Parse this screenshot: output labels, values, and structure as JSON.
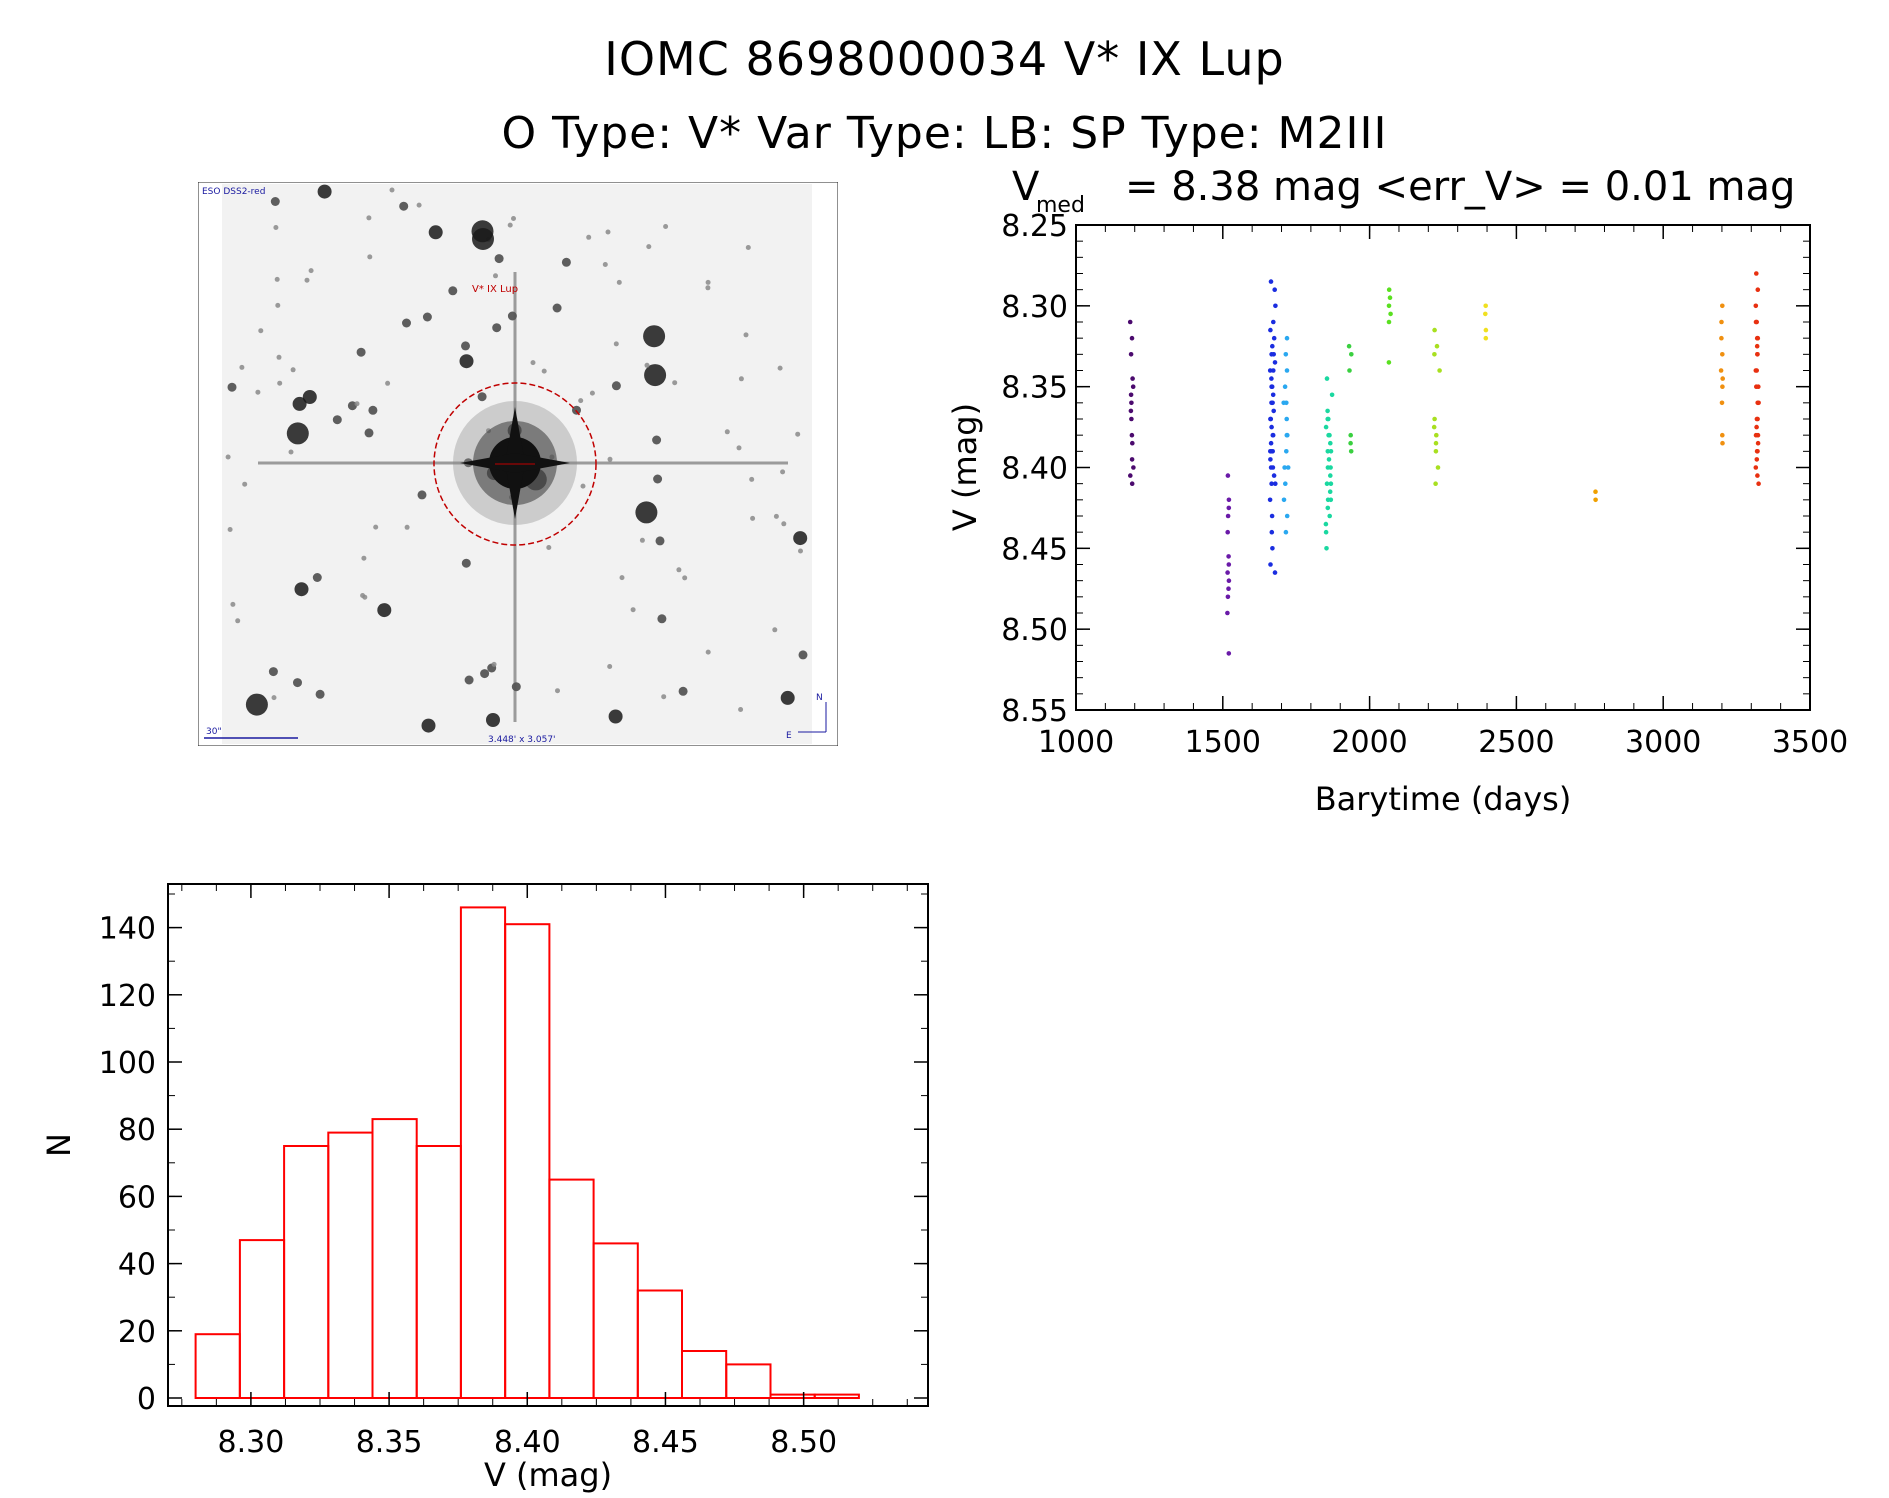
{
  "title": {
    "line1": "IOMC 8698000034    V* IX Lup",
    "line2": "O Type: V*  Var Type: LB:  SP Type: M2III"
  },
  "sky_image": {
    "survey_label": "ESO DSS2-red",
    "target_label": "V* IX Lup",
    "scale_label": "30\"",
    "fov_label": "3.448' x 3.057'",
    "north_label": "N",
    "east_label": "E"
  },
  "chart_data": [
    {
      "type": "scatter",
      "title_prefix": "V",
      "title_sub": "med",
      "title": "= 8.38 mag <err_V> = 0.01 mag",
      "xlabel": "Barytime (days)",
      "ylabel": "V (mag)",
      "xlim": [
        1000,
        3500
      ],
      "ylim": [
        8.55,
        8.25
      ],
      "y_inverted": true,
      "xticks": [
        "1000",
        "1500",
        "2000",
        "2500",
        "3000",
        "3500"
      ],
      "yticks": [
        "8.25",
        "8.30",
        "8.35",
        "8.40",
        "8.45",
        "8.50",
        "8.55"
      ],
      "groups": [
        {
          "color": "#4b0a6e",
          "x": 1190,
          "x_spread": 12,
          "y": [
            8.31,
            8.32,
            8.33,
            8.345,
            8.355,
            8.36,
            8.365,
            8.38,
            8.385,
            8.395,
            8.4,
            8.405,
            8.41,
            8.35,
            8.37
          ]
        },
        {
          "color": "#6a1aa8",
          "x": 1518,
          "x_spread": 6,
          "y": [
            8.405,
            8.42,
            8.43,
            8.44,
            8.455,
            8.46,
            8.465,
            8.47,
            8.48,
            8.49,
            8.515,
            8.425,
            8.475
          ]
        },
        {
          "color": "#1a2de0",
          "x": 1670,
          "x_spread": 18,
          "y": [
            8.285,
            8.29,
            8.3,
            8.31,
            8.315,
            8.32,
            8.325,
            8.33,
            8.335,
            8.34,
            8.345,
            8.35,
            8.355,
            8.36,
            8.365,
            8.37,
            8.375,
            8.38,
            8.385,
            8.39,
            8.395,
            8.4,
            8.405,
            8.41,
            8.42,
            8.43,
            8.44,
            8.45,
            8.46,
            8.465,
            8.37,
            8.36,
            8.38,
            8.39,
            8.4,
            8.35,
            8.34,
            8.33,
            8.41,
            8.39
          ]
        },
        {
          "color": "#2aa8f0",
          "x": 1715,
          "x_spread": 16,
          "y": [
            8.32,
            8.33,
            8.34,
            8.35,
            8.36,
            8.37,
            8.38,
            8.39,
            8.4,
            8.41,
            8.42,
            8.43,
            8.44,
            8.36,
            8.38,
            8.4
          ]
        },
        {
          "color": "#1ad8a0",
          "x": 1862,
          "x_spread": 26,
          "y": [
            8.345,
            8.355,
            8.365,
            8.37,
            8.375,
            8.38,
            8.385,
            8.39,
            8.395,
            8.4,
            8.405,
            8.41,
            8.415,
            8.42,
            8.425,
            8.43,
            8.435,
            8.44,
            8.45,
            8.39,
            8.4,
            8.38,
            8.41,
            8.42,
            8.37
          ]
        },
        {
          "color": "#3ad040",
          "x": 1935,
          "x_spread": 10,
          "y": [
            8.325,
            8.33,
            8.34,
            8.38,
            8.385,
            8.39
          ]
        },
        {
          "color": "#5ae020",
          "x": 2070,
          "x_spread": 10,
          "y": [
            8.29,
            8.295,
            8.3,
            8.305,
            8.31,
            8.335
          ]
        },
        {
          "color": "#a8e020",
          "x": 2230,
          "x_spread": 20,
          "y": [
            8.315,
            8.325,
            8.33,
            8.34,
            8.37,
            8.375,
            8.38,
            8.385,
            8.39,
            8.4,
            8.41
          ]
        },
        {
          "color": "#f0e020",
          "x": 2395,
          "x_spread": 3,
          "y": [
            8.3,
            8.305,
            8.315,
            8.32
          ]
        },
        {
          "color": "#f0a000",
          "x": 2770,
          "x_spread": 3,
          "y": [
            8.415,
            8.42
          ]
        },
        {
          "color": "#f09010",
          "x": 3200,
          "x_spread": 6,
          "y": [
            8.3,
            8.31,
            8.32,
            8.33,
            8.34,
            8.345,
            8.35,
            8.36,
            8.38,
            8.385
          ]
        },
        {
          "color": "#e83010",
          "x": 3320,
          "x_spread": 10,
          "y": [
            8.28,
            8.29,
            8.3,
            8.31,
            8.32,
            8.33,
            8.34,
            8.35,
            8.36,
            8.37,
            8.375,
            8.38,
            8.385,
            8.39,
            8.395,
            8.4,
            8.405,
            8.41,
            8.32,
            8.34,
            8.36,
            8.38,
            8.33,
            8.35,
            8.37,
            8.39,
            8.31,
            8.325
          ]
        }
      ]
    },
    {
      "type": "bar",
      "xlabel": "V (mag)",
      "ylabel": "N",
      "xlim": [
        8.27,
        8.545
      ],
      "ylim": [
        0,
        150
      ],
      "bar_color": "#ff0000",
      "xticks": [
        "8.30",
        "8.35",
        "8.40",
        "8.45",
        "8.50"
      ],
      "yticks": [
        "0",
        "20",
        "40",
        "60",
        "80",
        "100",
        "120",
        "140"
      ],
      "bins": [
        {
          "x0": 8.28,
          "x1": 8.296,
          "value": 19
        },
        {
          "x0": 8.296,
          "x1": 8.312,
          "value": 47
        },
        {
          "x0": 8.312,
          "x1": 8.328,
          "value": 75
        },
        {
          "x0": 8.328,
          "x1": 8.344,
          "value": 79
        },
        {
          "x0": 8.344,
          "x1": 8.36,
          "value": 83
        },
        {
          "x0": 8.36,
          "x1": 8.376,
          "value": 75
        },
        {
          "x0": 8.376,
          "x1": 8.392,
          "value": 146
        },
        {
          "x0": 8.392,
          "x1": 8.408,
          "value": 141
        },
        {
          "x0": 8.408,
          "x1": 8.424,
          "value": 65
        },
        {
          "x0": 8.424,
          "x1": 8.44,
          "value": 46
        },
        {
          "x0": 8.44,
          "x1": 8.456,
          "value": 32
        },
        {
          "x0": 8.456,
          "x1": 8.472,
          "value": 14
        },
        {
          "x0": 8.472,
          "x1": 8.488,
          "value": 10
        },
        {
          "x0": 8.488,
          "x1": 8.504,
          "value": 1
        },
        {
          "x0": 8.504,
          "x1": 8.52,
          "value": 1
        }
      ]
    }
  ]
}
